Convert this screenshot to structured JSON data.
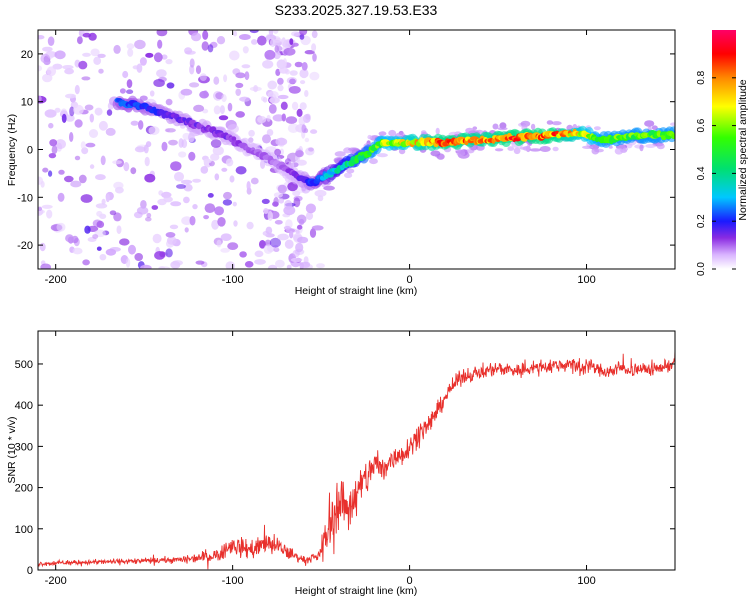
{
  "title": "S233.2025.327.19.53.E33",
  "chart_data": [
    {
      "type": "heatmap",
      "name": "spectrogram",
      "xlabel": "Height of straight line (km)",
      "ylabel": "Frequency (Hz)",
      "xlim": [
        -210,
        150
      ],
      "ylim": [
        -25,
        25
      ],
      "xticks": [
        -200,
        -100,
        0,
        100
      ],
      "yticks": [
        -20,
        -10,
        0,
        10,
        20
      ],
      "colorbar": {
        "label": "Normalized spectral amplitude",
        "range": [
          0.0,
          1.0
        ],
        "ticks": [
          0.0,
          0.2,
          0.4,
          0.6,
          0.8
        ]
      },
      "ridge": {
        "x": [
          -165,
          -150,
          -135,
          -120,
          -105,
          -90,
          -75,
          -62,
          -55,
          -45,
          -35,
          -25,
          -15,
          0,
          20,
          40,
          60,
          80,
          95,
          110,
          130,
          150
        ],
        "frequency": [
          10,
          9,
          7,
          5,
          3,
          0,
          -3,
          -6,
          -7,
          -5,
          -3,
          -1,
          1.5,
          1.5,
          1.5,
          2,
          2.5,
          3,
          3.5,
          2,
          3,
          3
        ],
        "amplitude": [
          0.25,
          0.22,
          0.18,
          0.15,
          0.15,
          0.12,
          0.1,
          0.15,
          0.22,
          0.35,
          0.45,
          0.55,
          0.65,
          0.75,
          0.9,
          0.85,
          0.9,
          0.9,
          0.75,
          0.6,
          0.6,
          0.6
        ]
      }
    },
    {
      "type": "line",
      "name": "snr",
      "xlabel": "Height of straight line (km)",
      "ylabel": "SNR (10 * v/v)",
      "xlim": [
        -210,
        150
      ],
      "ylim": [
        0,
        580
      ],
      "xticks": [
        -200,
        -100,
        0,
        100
      ],
      "yticks": [
        0,
        100,
        200,
        300,
        400,
        500
      ],
      "color": "#e8302c",
      "x": [
        -210,
        -190,
        -170,
        -150,
        -130,
        -110,
        -100,
        -90,
        -80,
        -70,
        -60,
        -52,
        -45,
        -40,
        -35,
        -30,
        -25,
        -20,
        -15,
        -10,
        -5,
        0,
        5,
        10,
        15,
        20,
        25,
        30,
        40,
        50,
        60,
        70,
        80,
        90,
        95,
        100,
        110,
        120,
        130,
        140,
        150
      ],
      "y": [
        15,
        18,
        20,
        22,
        25,
        35,
        60,
        50,
        65,
        45,
        25,
        30,
        110,
        170,
        150,
        180,
        220,
        260,
        240,
        270,
        280,
        300,
        330,
        350,
        380,
        420,
        450,
        470,
        480,
        490,
        485,
        490,
        495,
        500,
        490,
        500,
        480,
        490,
        485,
        490,
        500
      ],
      "noise": [
        8,
        8,
        10,
        10,
        12,
        25,
        35,
        35,
        40,
        30,
        12,
        15,
        80,
        100,
        90,
        80,
        70,
        60,
        55,
        50,
        45,
        40,
        40,
        35,
        35,
        30,
        28,
        28,
        25,
        25,
        25,
        25,
        25,
        25,
        40,
        25,
        25,
        25,
        25,
        25,
        25
      ]
    }
  ]
}
